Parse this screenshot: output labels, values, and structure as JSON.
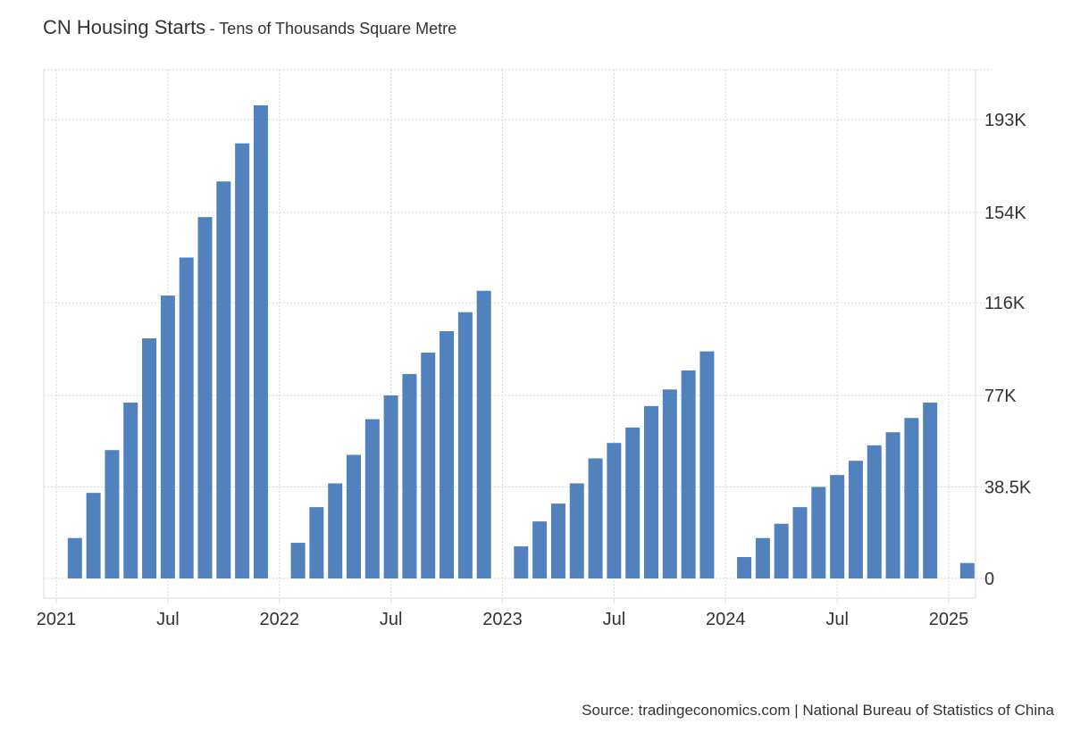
{
  "header": {
    "title": "CN Housing Starts",
    "subtitle": "- Tens of Thousands Square Metre"
  },
  "footer": {
    "source": "Source: tradingeconomics.com | National Bureau of Statistics of China"
  },
  "colors": {
    "bar": "#5282bd",
    "grid": "#d9d9d9",
    "axis": "#dddddd",
    "text": "#333333"
  },
  "chart_data": {
    "type": "bar",
    "title": "CN Housing Starts",
    "subtitle": "Tens of Thousands Square Metre",
    "ylim": [
      -8000,
      212000
    ],
    "y_ticks": [
      0,
      38500,
      77000,
      116000,
      154000,
      193000
    ],
    "y_tick_labels": [
      "0",
      "38.5K",
      "77K",
      "116K",
      "154K",
      "193K"
    ],
    "x_ticks": [
      "2021-01",
      "2021-07",
      "2022-01",
      "2022-07",
      "2023-01",
      "2023-07",
      "2024-01",
      "2024-07",
      "2025-01"
    ],
    "x_tick_labels": [
      "2021",
      "Jul",
      "2022",
      "Jul",
      "2023",
      "Jul",
      "2024",
      "Jul",
      "2025"
    ],
    "grid": true,
    "legend": "none",
    "categories": [
      "2021-02",
      "2021-03",
      "2021-04",
      "2021-05",
      "2021-06",
      "2021-07",
      "2021-08",
      "2021-09",
      "2021-10",
      "2021-11",
      "2021-12",
      "2022-02",
      "2022-03",
      "2022-04",
      "2022-05",
      "2022-06",
      "2022-07",
      "2022-08",
      "2022-09",
      "2022-10",
      "2022-11",
      "2022-12",
      "2023-02",
      "2023-03",
      "2023-04",
      "2023-05",
      "2023-06",
      "2023-07",
      "2023-08",
      "2023-09",
      "2023-10",
      "2023-11",
      "2023-12",
      "2024-02",
      "2024-03",
      "2024-04",
      "2024-05",
      "2024-06",
      "2024-07",
      "2024-08",
      "2024-09",
      "2024-10",
      "2024-11",
      "2024-12",
      "2025-02"
    ],
    "values": [
      17000,
      36000,
      54000,
      74000,
      101000,
      119000,
      135000,
      152000,
      167000,
      183000,
      199000,
      15000,
      30000,
      40000,
      52000,
      67000,
      77000,
      86000,
      95000,
      104000,
      112000,
      121000,
      13500,
      24000,
      31500,
      40000,
      50500,
      57000,
      63500,
      72500,
      79500,
      87500,
      95500,
      9000,
      17000,
      23000,
      30000,
      38500,
      43500,
      49500,
      56000,
      61500,
      67500,
      74000,
      6500
    ]
  }
}
